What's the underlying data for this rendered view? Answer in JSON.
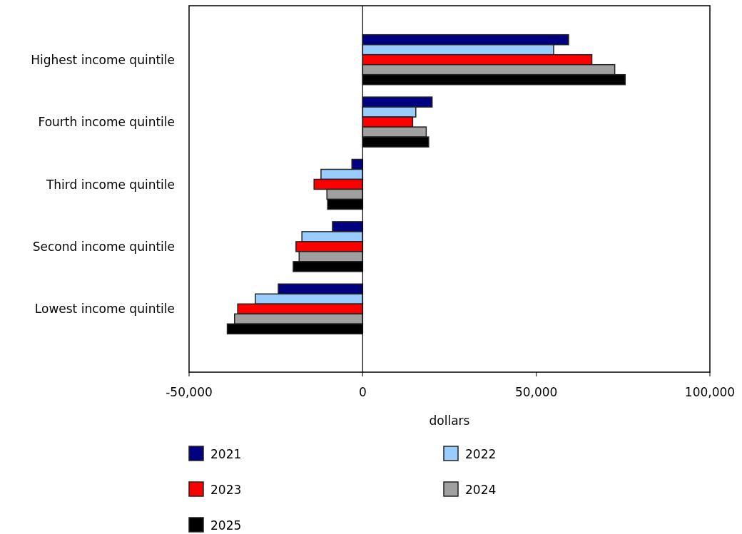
{
  "chart_data": {
    "type": "bar",
    "orientation": "horizontal",
    "categories": [
      "Highest income quintile",
      "Fourth income quintile",
      "Third income quintile",
      "Second income quintile",
      "Lowest income quintile"
    ],
    "series": [
      {
        "name": "2021",
        "color": "#000080",
        "values": [
          59300,
          20000,
          -3100,
          -8700,
          -24300
        ]
      },
      {
        "name": "2022",
        "color": "#99ccff",
        "values": [
          55000,
          15300,
          -12000,
          -17500,
          -30900
        ]
      },
      {
        "name": "2023",
        "color": "#ff0000",
        "values": [
          66000,
          14400,
          -14000,
          -19200,
          -36000
        ]
      },
      {
        "name": "2024",
        "color": "#a0a0a0",
        "values": [
          72600,
          18300,
          -10300,
          -18300,
          -36900
        ]
      },
      {
        "name": "2025",
        "color": "#000000",
        "values": [
          75600,
          19000,
          -10100,
          -20000,
          -39000
        ]
      }
    ],
    "xlim": [
      -50000,
      100000
    ],
    "xticks": [
      {
        "value": -50000,
        "label": "-50,000"
      },
      0,
      {
        "value": 50000,
        "label": "50,000"
      },
      {
        "value": 100000,
        "label": "100,000"
      }
    ],
    "xlabel": "dollars",
    "legend": "bottom"
  }
}
